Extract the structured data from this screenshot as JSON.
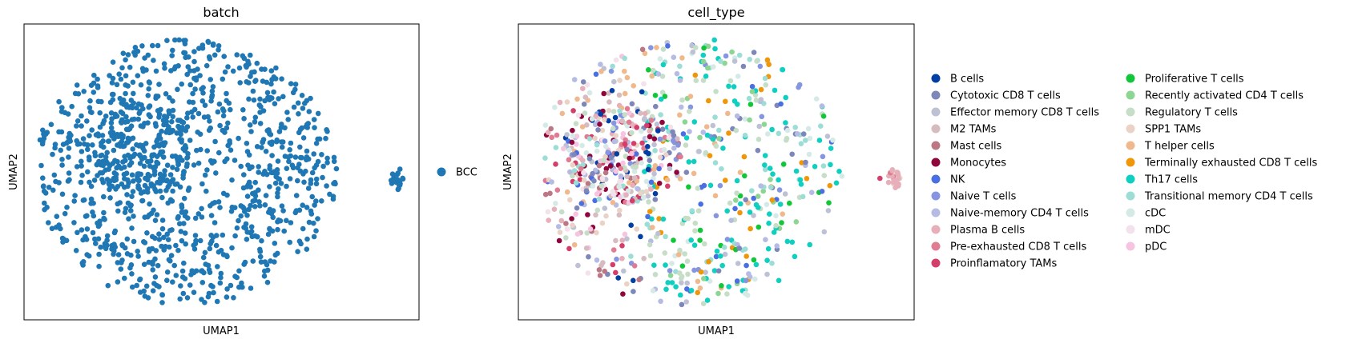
{
  "chart_data": [
    {
      "type": "scatter",
      "title": "batch",
      "xlabel": "UMAP1",
      "ylabel": "UMAP2",
      "xlim": [
        -10,
        12
      ],
      "ylim": [
        -8,
        8
      ],
      "ticks": false,
      "grid": false,
      "legend_placement": "right",
      "series": [
        {
          "name": "BCC",
          "color": "#1f77b4",
          "clusters": [
            {
              "cx": -1.0,
              "cy": 0.0,
              "rx": 8.4,
              "ry": 7.2,
              "n": 950,
              "share": 1.0
            },
            {
              "cx": -3.5,
              "cy": 1.2,
              "rx": 3.0,
              "ry": 2.5,
              "n": 200,
              "share": 1.0
            },
            {
              "cx": 10.8,
              "cy": -0.4,
              "rx": 0.4,
              "ry": 0.6,
              "n": 25,
              "share": 1.0
            }
          ]
        }
      ]
    },
    {
      "type": "scatter",
      "title": "cell_type",
      "xlabel": "UMAP1",
      "ylabel": "UMAP2",
      "xlim": [
        -10,
        12
      ],
      "ylim": [
        -8,
        8
      ],
      "ticks": false,
      "grid": false,
      "legend_placement": "right",
      "series": [
        {
          "name": "B cells",
          "color": "#023fa5"
        },
        {
          "name": "Cytotoxic CD8 T cells",
          "color": "#7d87b9"
        },
        {
          "name": "Effector memory CD8 T cells",
          "color": "#bec1d4"
        },
        {
          "name": "M2 TAMs",
          "color": "#d6bcc0"
        },
        {
          "name": "Mast cells",
          "color": "#bb7784"
        },
        {
          "name": "Monocytes",
          "color": "#8e063b"
        },
        {
          "name": "NK",
          "color": "#4a6fe3"
        },
        {
          "name": "Naive T cells",
          "color": "#8595e1"
        },
        {
          "name": "Naive-memory CD4 T cells",
          "color": "#b5bbe3"
        },
        {
          "name": "Plasma B cells",
          "color": "#e6afb9"
        },
        {
          "name": "Pre-exhausted CD8 T cells",
          "color": "#e07b91"
        },
        {
          "name": "Proinflamatory TAMs",
          "color": "#d33f6a"
        },
        {
          "name": "Proliferative T cells",
          "color": "#11c638"
        },
        {
          "name": "Recently activated CD4 T cells",
          "color": "#8dd593"
        },
        {
          "name": "Regulatory T cells",
          "color": "#c6dec7"
        },
        {
          "name": "SPP1 TAMs",
          "color": "#ead3c6"
        },
        {
          "name": "T helper cells",
          "color": "#f0b98d"
        },
        {
          "name": "Terminally exhausted CD8 T cells",
          "color": "#ef9708"
        },
        {
          "name": "Th17 cells",
          "color": "#0fcfc0"
        },
        {
          "name": "Transitional memory CD4 T cells",
          "color": "#9cded6"
        },
        {
          "name": "cDC",
          "color": "#d5eae7"
        },
        {
          "name": "mDC",
          "color": "#f3e1eb"
        },
        {
          "name": "pDC",
          "color": "#f6c4e1"
        }
      ]
    }
  ]
}
